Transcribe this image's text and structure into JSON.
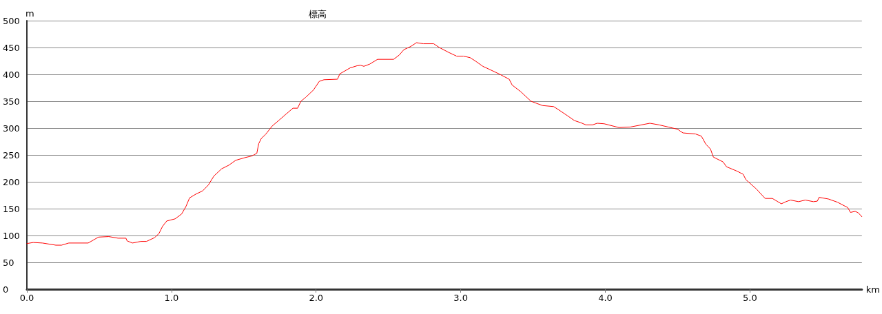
{
  "chart_data": {
    "type": "line",
    "title": "標高",
    "xlabel": "km",
    "ylabel": "m",
    "xlim": [
      0,
      5.774
    ],
    "ylim": [
      0,
      500
    ],
    "xticks": [
      {
        "value": 0,
        "label": "0.0"
      },
      {
        "value": 1,
        "label": "1.0"
      },
      {
        "value": 2,
        "label": "2.0"
      },
      {
        "value": 3,
        "label": "3.0"
      },
      {
        "value": 4,
        "label": "4.0"
      },
      {
        "value": 5,
        "label": "5.0"
      }
    ],
    "yticks": [
      0,
      50,
      100,
      150,
      200,
      250,
      300,
      350,
      400,
      450,
      500
    ],
    "grid": "y",
    "marker": "none",
    "line_style": "solid",
    "series": [
      {
        "color": "#ff0000",
        "x": [
          0,
          0.044,
          0.108,
          0.2,
          0.24,
          0.29,
          0.424,
          0.495,
          0.566,
          0.63,
          0.685,
          0.693,
          0.73,
          0.788,
          0.827,
          0.883,
          0.914,
          0.938,
          0.967,
          1.025,
          1.07,
          1.1,
          1.125,
          1.168,
          1.215,
          1.255,
          1.294,
          1.346,
          1.397,
          1.444,
          1.508,
          1.555,
          1.59,
          1.603,
          1.622,
          1.65,
          1.697,
          1.745,
          1.792,
          1.84,
          1.872,
          1.895,
          1.927,
          1.982,
          2.022,
          2.054,
          2.148,
          2.164,
          2.235,
          2.283,
          2.307,
          2.33,
          2.37,
          2.425,
          2.536,
          2.575,
          2.607,
          2.655,
          2.694,
          2.742,
          2.813,
          2.852,
          2.916,
          2.971,
          3.019,
          3.066,
          3.106,
          3.153,
          3.193,
          3.264,
          3.335,
          3.356,
          3.414,
          3.486,
          3.565,
          3.643,
          3.683,
          3.738,
          3.786,
          3.83,
          3.865,
          3.912,
          3.944,
          3.992,
          4.094,
          4.173,
          4.308,
          4.371,
          4.435,
          4.498,
          4.537,
          4.624,
          4.664,
          4.695,
          4.727,
          4.747,
          4.814,
          4.838,
          4.909,
          4.953,
          4.972,
          5.043,
          5.105,
          5.155,
          5.217,
          5.249,
          5.281,
          5.336,
          5.383,
          5.439,
          5.466,
          5.478,
          5.542,
          5.605,
          5.676,
          5.695,
          5.728,
          5.75,
          5.774
        ],
        "values": [
          85,
          87,
          86,
          82,
          82,
          86,
          86,
          97,
          98,
          95,
          95,
          90,
          86,
          89,
          89,
          96,
          104,
          117,
          127,
          131,
          140,
          154,
          170,
          177,
          183,
          194,
          211,
          224,
          231,
          240,
          245,
          248,
          253,
          271,
          281,
          288,
          304,
          315,
          326,
          337,
          337,
          350,
          357,
          371,
          387,
          390,
          391,
          401,
          412,
          416,
          417,
          415,
          419,
          428,
          428,
          436,
          446,
          452,
          459,
          457,
          457,
          450,
          441,
          434,
          434,
          431,
          424,
          415,
          410,
          401,
          391,
          380,
          368,
          350,
          342,
          340,
          333,
          323,
          314,
          310,
          306,
          306,
          309,
          308,
          301,
          302,
          309,
          306,
          302,
          298,
          291,
          289,
          285,
          270,
          261,
          246,
          237,
          228,
          220,
          214,
          204,
          187,
          169,
          169,
          159,
          163,
          166,
          163,
          166,
          163,
          164,
          171,
          168,
          162,
          152,
          143,
          145,
          142,
          135
        ]
      }
    ]
  }
}
